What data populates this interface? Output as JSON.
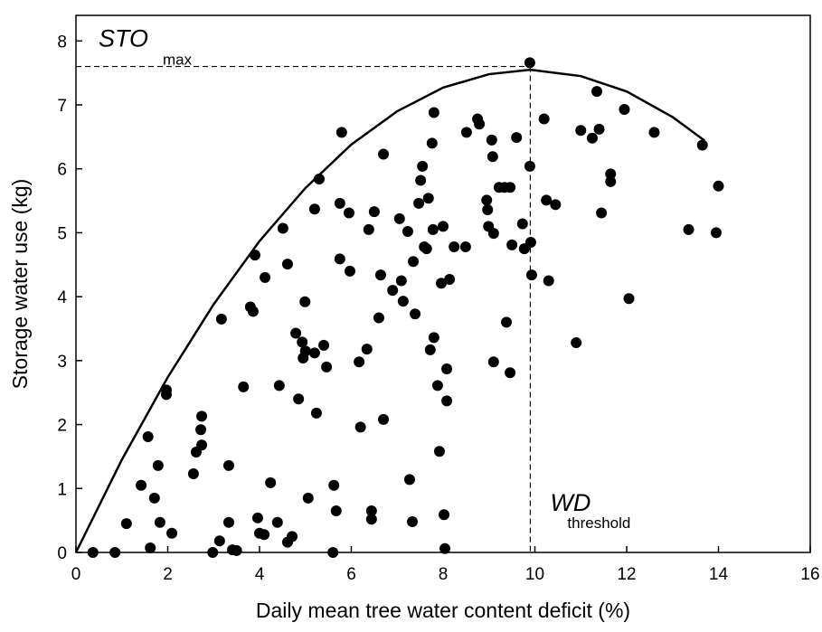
{
  "chart_data": {
    "type": "scatter",
    "x_label": "Daily mean tree water content deficit (%)",
    "y_label": "Storage water use (kg)",
    "xlim": [
      0,
      16
    ],
    "xticks": [
      0,
      2,
      4,
      6,
      8,
      10,
      12,
      14,
      16
    ],
    "ylim": [
      0,
      8.4
    ],
    "yticks": [
      0,
      1,
      2,
      3,
      4,
      5,
      6,
      7,
      8
    ],
    "annotations": {
      "sto": "STO",
      "sto_sub": "max",
      "wd": "WD",
      "wd_sub": "threshold"
    },
    "reference_lines": {
      "sto_max": 7.6,
      "wd_threshold": 9.9
    },
    "curve": {
      "x": [
        0,
        1,
        2,
        3,
        4,
        5,
        6,
        7,
        8,
        9,
        9.9,
        11,
        12,
        13,
        13.7
      ],
      "values": [
        0,
        1.45,
        2.74,
        3.88,
        4.87,
        5.7,
        6.38,
        6.9,
        7.27,
        7.48,
        7.55,
        7.45,
        7.21,
        6.81,
        6.44
      ]
    },
    "series": [
      {
        "color": "#000000",
        "x": [
          0.37,
          0.85,
          1.1,
          1.42,
          1.57,
          1.62,
          1.71,
          1.79,
          1.83,
          1.97,
          1.97,
          2.09,
          2.56,
          2.62,
          2.72,
          2.74,
          2.74,
          2.98,
          3.13,
          3.17,
          3.33,
          3.33,
          3.41,
          3.5,
          3.65,
          3.8,
          3.86,
          3.9,
          3.96,
          4.0,
          4.1,
          4.12,
          4.24,
          4.39,
          4.43,
          4.51,
          4.61,
          4.61,
          4.71,
          4.79,
          4.85,
          4.93,
          4.95,
          4.99,
          5.0,
          5.06,
          5.2,
          5.2,
          5.24,
          5.3,
          5.4,
          5.46,
          5.6,
          5.62,
          5.67,
          5.75,
          5.75,
          5.79,
          5.95,
          5.97,
          6.17,
          6.2,
          6.34,
          6.38,
          6.44,
          6.44,
          6.5,
          6.6,
          6.64,
          6.7,
          6.7,
          6.9,
          7.05,
          7.09,
          7.13,
          7.23,
          7.27,
          7.33,
          7.35,
          7.39,
          7.47,
          7.51,
          7.55,
          7.59,
          7.64,
          7.68,
          7.72,
          7.76,
          7.8,
          7.8,
          7.78,
          7.88,
          7.92,
          7.96,
          8.0,
          8.02,
          8.04,
          8.08,
          8.08,
          8.14,
          8.24,
          8.49,
          8.51,
          8.75,
          8.79,
          8.95,
          8.97,
          8.99,
          9.06,
          9.08,
          9.1,
          9.1,
          9.22,
          9.34,
          9.38,
          9.46,
          9.46,
          9.5,
          9.6,
          9.73,
          9.77,
          9.89,
          9.89,
          9.91,
          9.93,
          10.2,
          10.25,
          10.3,
          10.45,
          10.9,
          11.0,
          11.25,
          11.35,
          11.4,
          11.45,
          11.65,
          11.65,
          11.95,
          12.05,
          12.6,
          13.35,
          13.65,
          13.95,
          14.0
        ],
        "values": [
          0,
          0,
          0.45,
          1.05,
          1.81,
          0.07,
          0.85,
          1.36,
          0.47,
          2.54,
          2.47,
          0.3,
          1.23,
          1.57,
          1.92,
          2.13,
          1.68,
          0,
          0.18,
          3.65,
          1.36,
          0.47,
          0.04,
          0.03,
          2.59,
          3.84,
          3.77,
          4.65,
          0.54,
          0.3,
          0.28,
          4.3,
          1.09,
          0.47,
          2.61,
          5.07,
          4.51,
          0.16,
          0.25,
          3.43,
          2.4,
          3.29,
          3.04,
          3.92,
          3.15,
          0.85,
          3.12,
          5.37,
          2.18,
          5.84,
          3.24,
          2.9,
          0,
          1.05,
          0.65,
          5.46,
          4.59,
          6.57,
          5.31,
          4.4,
          2.98,
          1.96,
          3.18,
          5.05,
          0.65,
          0.52,
          5.33,
          3.67,
          4.34,
          2.08,
          6.23,
          4.1,
          5.22,
          4.25,
          3.93,
          5.02,
          1.14,
          0.48,
          4.55,
          3.73,
          5.46,
          5.82,
          6.04,
          4.78,
          4.75,
          5.54,
          3.17,
          6.4,
          6.88,
          3.36,
          5.05,
          2.61,
          1.58,
          4.21,
          5.1,
          0.59,
          0.06,
          2.87,
          2.37,
          4.27,
          4.78,
          4.78,
          6.57,
          6.78,
          6.7,
          5.51,
          5.36,
          5.1,
          6.45,
          6.19,
          4.99,
          2.98,
          5.71,
          5.71,
          3.6,
          5.71,
          2.81,
          4.81,
          6.49,
          5.14,
          4.75,
          7.66,
          6.04,
          4.85,
          4.34,
          6.78,
          5.51,
          4.25,
          5.44,
          3.28,
          6.6,
          6.48,
          7.21,
          6.62,
          5.31,
          5.92,
          5.8,
          6.93,
          3.97,
          6.57,
          5.05,
          6.37,
          5.0,
          5.73
        ]
      }
    ]
  }
}
